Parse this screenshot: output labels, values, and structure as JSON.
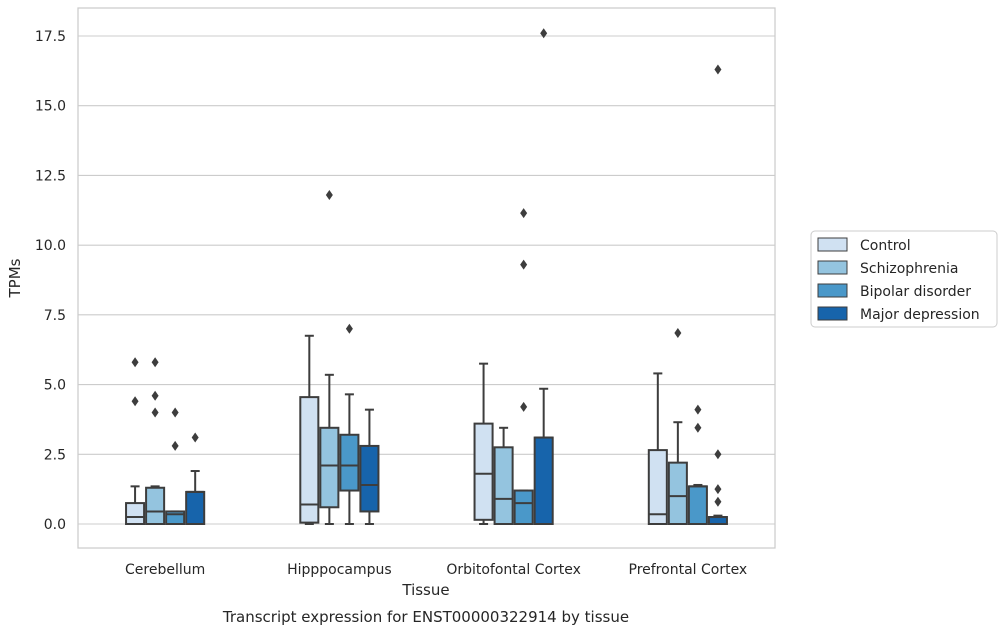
{
  "chart_data": {
    "type": "box",
    "title": "",
    "caption": "Transcript expression for ENST00000322914 by tissue",
    "xlabel": "Tissue",
    "ylabel": "TPMs",
    "ylim": [
      -0.85,
      18.5
    ],
    "yticks": [
      0.0,
      2.5,
      5.0,
      7.5,
      10.0,
      12.5,
      15.0,
      17.5
    ],
    "ytick_labels": [
      "0.0",
      "2.5",
      "5.0",
      "7.5",
      "10.0",
      "12.5",
      "15.0",
      "17.5"
    ],
    "grid": true,
    "legend_position": "outside-right",
    "categories": [
      "Cerebellum",
      "Hipppocampus",
      "Orbitofontal Cortex",
      "Prefrontal Cortex"
    ],
    "series": [
      {
        "name": "Control",
        "color": "#d0e1f2",
        "boxes": [
          {
            "whislo": 0.0,
            "q1": 0.0,
            "med": 0.25,
            "q3": 0.75,
            "whishi": 1.35,
            "fliers": [
              4.4,
              5.8
            ]
          },
          {
            "whislo": 0.0,
            "q1": 0.05,
            "med": 0.7,
            "q3": 4.55,
            "whishi": 6.75,
            "fliers": []
          },
          {
            "whislo": 0.0,
            "q1": 0.15,
            "med": 1.8,
            "q3": 3.6,
            "whishi": 5.75,
            "fliers": []
          },
          {
            "whislo": 0.0,
            "q1": 0.0,
            "med": 0.35,
            "q3": 2.65,
            "whishi": 5.4,
            "fliers": []
          }
        ]
      },
      {
        "name": "Schizophrenia",
        "color": "#94c4df",
        "boxes": [
          {
            "whislo": 0.0,
            "q1": 0.0,
            "med": 0.45,
            "q3": 1.3,
            "whishi": 1.35,
            "fliers": [
              4.0,
              4.6,
              5.8
            ]
          },
          {
            "whislo": 0.0,
            "q1": 0.6,
            "med": 2.1,
            "q3": 3.45,
            "whishi": 5.35,
            "fliers": [
              11.8
            ]
          },
          {
            "whislo": 0.0,
            "q1": 0.0,
            "med": 0.9,
            "q3": 2.75,
            "whishi": 3.45,
            "fliers": []
          },
          {
            "whislo": 0.0,
            "q1": 0.0,
            "med": 1.0,
            "q3": 2.2,
            "whishi": 3.65,
            "fliers": [
              6.85
            ]
          }
        ]
      },
      {
        "name": "Bipolar disorder",
        "color": "#4a98c9",
        "boxes": [
          {
            "whislo": 0.0,
            "q1": 0.0,
            "med": 0.35,
            "q3": 0.45,
            "whishi": 0.45,
            "fliers": [
              2.8,
              4.0
            ]
          },
          {
            "whislo": 0.0,
            "q1": 1.2,
            "med": 2.1,
            "q3": 3.2,
            "whishi": 4.65,
            "fliers": [
              7.0
            ]
          },
          {
            "whislo": 0.0,
            "q1": 0.0,
            "med": 0.75,
            "q3": 1.2,
            "whishi": 1.2,
            "fliers": [
              4.2,
              9.3,
              11.15
            ]
          },
          {
            "whislo": 0.0,
            "q1": 0.0,
            "med": 1.35,
            "q3": 1.35,
            "whishi": 1.4,
            "fliers": [
              3.45,
              4.1
            ]
          }
        ]
      },
      {
        "name": "Major depression",
        "color": "#1764ab",
        "boxes": [
          {
            "whislo": 0.0,
            "q1": 0.0,
            "med": 1.15,
            "q3": 1.15,
            "whishi": 1.9,
            "fliers": [
              3.1
            ]
          },
          {
            "whislo": 0.0,
            "q1": 0.45,
            "med": 1.4,
            "q3": 2.8,
            "whishi": 4.1,
            "fliers": []
          },
          {
            "whislo": 0.0,
            "q1": 0.0,
            "med": 3.1,
            "q3": 3.1,
            "whishi": 4.85,
            "fliers": [
              17.6
            ]
          },
          {
            "whislo": 0.0,
            "q1": 0.0,
            "med": 0.25,
            "q3": 0.25,
            "whishi": 0.3,
            "fliers": [
              0.8,
              1.25,
              2.5,
              16.3
            ]
          }
        ]
      }
    ]
  }
}
